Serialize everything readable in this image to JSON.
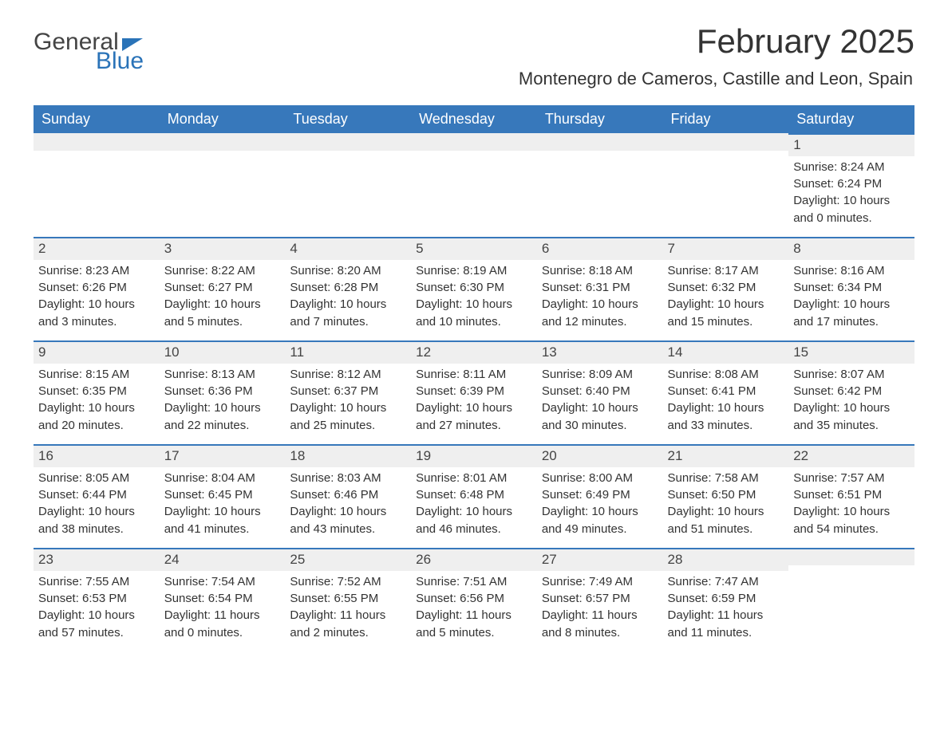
{
  "brand": {
    "word1": "General",
    "word2": "Blue",
    "accent_color": "#2a73b8"
  },
  "title": "February 2025",
  "location": "Montenegro de Cameros, Castille and Leon, Spain",
  "columns": [
    "Sunday",
    "Monday",
    "Tuesday",
    "Wednesday",
    "Thursday",
    "Friday",
    "Saturday"
  ],
  "colors": {
    "header_bg": "#3778bb",
    "header_text": "#ffffff",
    "daybar_bg": "#efefef",
    "daybar_border": "#3778bb",
    "body_text": "#333333",
    "page_bg": "#ffffff"
  },
  "fonts": {
    "title_size_pt": 32,
    "location_size_pt": 17,
    "header_size_pt": 14,
    "body_size_pt": 11,
    "daynum_size_pt": 13
  },
  "weeks": [
    [
      {
        "n": null
      },
      {
        "n": null
      },
      {
        "n": null
      },
      {
        "n": null
      },
      {
        "n": null
      },
      {
        "n": null
      },
      {
        "n": "1",
        "sunrise": "Sunrise: 8:24 AM",
        "sunset": "Sunset: 6:24 PM",
        "day1": "Daylight: 10 hours",
        "day2": "and 0 minutes."
      }
    ],
    [
      {
        "n": "2",
        "sunrise": "Sunrise: 8:23 AM",
        "sunset": "Sunset: 6:26 PM",
        "day1": "Daylight: 10 hours",
        "day2": "and 3 minutes."
      },
      {
        "n": "3",
        "sunrise": "Sunrise: 8:22 AM",
        "sunset": "Sunset: 6:27 PM",
        "day1": "Daylight: 10 hours",
        "day2": "and 5 minutes."
      },
      {
        "n": "4",
        "sunrise": "Sunrise: 8:20 AM",
        "sunset": "Sunset: 6:28 PM",
        "day1": "Daylight: 10 hours",
        "day2": "and 7 minutes."
      },
      {
        "n": "5",
        "sunrise": "Sunrise: 8:19 AM",
        "sunset": "Sunset: 6:30 PM",
        "day1": "Daylight: 10 hours",
        "day2": "and 10 minutes."
      },
      {
        "n": "6",
        "sunrise": "Sunrise: 8:18 AM",
        "sunset": "Sunset: 6:31 PM",
        "day1": "Daylight: 10 hours",
        "day2": "and 12 minutes."
      },
      {
        "n": "7",
        "sunrise": "Sunrise: 8:17 AM",
        "sunset": "Sunset: 6:32 PM",
        "day1": "Daylight: 10 hours",
        "day2": "and 15 minutes."
      },
      {
        "n": "8",
        "sunrise": "Sunrise: 8:16 AM",
        "sunset": "Sunset: 6:34 PM",
        "day1": "Daylight: 10 hours",
        "day2": "and 17 minutes."
      }
    ],
    [
      {
        "n": "9",
        "sunrise": "Sunrise: 8:15 AM",
        "sunset": "Sunset: 6:35 PM",
        "day1": "Daylight: 10 hours",
        "day2": "and 20 minutes."
      },
      {
        "n": "10",
        "sunrise": "Sunrise: 8:13 AM",
        "sunset": "Sunset: 6:36 PM",
        "day1": "Daylight: 10 hours",
        "day2": "and 22 minutes."
      },
      {
        "n": "11",
        "sunrise": "Sunrise: 8:12 AM",
        "sunset": "Sunset: 6:37 PM",
        "day1": "Daylight: 10 hours",
        "day2": "and 25 minutes."
      },
      {
        "n": "12",
        "sunrise": "Sunrise: 8:11 AM",
        "sunset": "Sunset: 6:39 PM",
        "day1": "Daylight: 10 hours",
        "day2": "and 27 minutes."
      },
      {
        "n": "13",
        "sunrise": "Sunrise: 8:09 AM",
        "sunset": "Sunset: 6:40 PM",
        "day1": "Daylight: 10 hours",
        "day2": "and 30 minutes."
      },
      {
        "n": "14",
        "sunrise": "Sunrise: 8:08 AM",
        "sunset": "Sunset: 6:41 PM",
        "day1": "Daylight: 10 hours",
        "day2": "and 33 minutes."
      },
      {
        "n": "15",
        "sunrise": "Sunrise: 8:07 AM",
        "sunset": "Sunset: 6:42 PM",
        "day1": "Daylight: 10 hours",
        "day2": "and 35 minutes."
      }
    ],
    [
      {
        "n": "16",
        "sunrise": "Sunrise: 8:05 AM",
        "sunset": "Sunset: 6:44 PM",
        "day1": "Daylight: 10 hours",
        "day2": "and 38 minutes."
      },
      {
        "n": "17",
        "sunrise": "Sunrise: 8:04 AM",
        "sunset": "Sunset: 6:45 PM",
        "day1": "Daylight: 10 hours",
        "day2": "and 41 minutes."
      },
      {
        "n": "18",
        "sunrise": "Sunrise: 8:03 AM",
        "sunset": "Sunset: 6:46 PM",
        "day1": "Daylight: 10 hours",
        "day2": "and 43 minutes."
      },
      {
        "n": "19",
        "sunrise": "Sunrise: 8:01 AM",
        "sunset": "Sunset: 6:48 PM",
        "day1": "Daylight: 10 hours",
        "day2": "and 46 minutes."
      },
      {
        "n": "20",
        "sunrise": "Sunrise: 8:00 AM",
        "sunset": "Sunset: 6:49 PM",
        "day1": "Daylight: 10 hours",
        "day2": "and 49 minutes."
      },
      {
        "n": "21",
        "sunrise": "Sunrise: 7:58 AM",
        "sunset": "Sunset: 6:50 PM",
        "day1": "Daylight: 10 hours",
        "day2": "and 51 minutes."
      },
      {
        "n": "22",
        "sunrise": "Sunrise: 7:57 AM",
        "sunset": "Sunset: 6:51 PM",
        "day1": "Daylight: 10 hours",
        "day2": "and 54 minutes."
      }
    ],
    [
      {
        "n": "23",
        "sunrise": "Sunrise: 7:55 AM",
        "sunset": "Sunset: 6:53 PM",
        "day1": "Daylight: 10 hours",
        "day2": "and 57 minutes."
      },
      {
        "n": "24",
        "sunrise": "Sunrise: 7:54 AM",
        "sunset": "Sunset: 6:54 PM",
        "day1": "Daylight: 11 hours",
        "day2": "and 0 minutes."
      },
      {
        "n": "25",
        "sunrise": "Sunrise: 7:52 AM",
        "sunset": "Sunset: 6:55 PM",
        "day1": "Daylight: 11 hours",
        "day2": "and 2 minutes."
      },
      {
        "n": "26",
        "sunrise": "Sunrise: 7:51 AM",
        "sunset": "Sunset: 6:56 PM",
        "day1": "Daylight: 11 hours",
        "day2": "and 5 minutes."
      },
      {
        "n": "27",
        "sunrise": "Sunrise: 7:49 AM",
        "sunset": "Sunset: 6:57 PM",
        "day1": "Daylight: 11 hours",
        "day2": "and 8 minutes."
      },
      {
        "n": "28",
        "sunrise": "Sunrise: 7:47 AM",
        "sunset": "Sunset: 6:59 PM",
        "day1": "Daylight: 11 hours",
        "day2": "and 11 minutes."
      },
      {
        "n": null
      }
    ]
  ]
}
